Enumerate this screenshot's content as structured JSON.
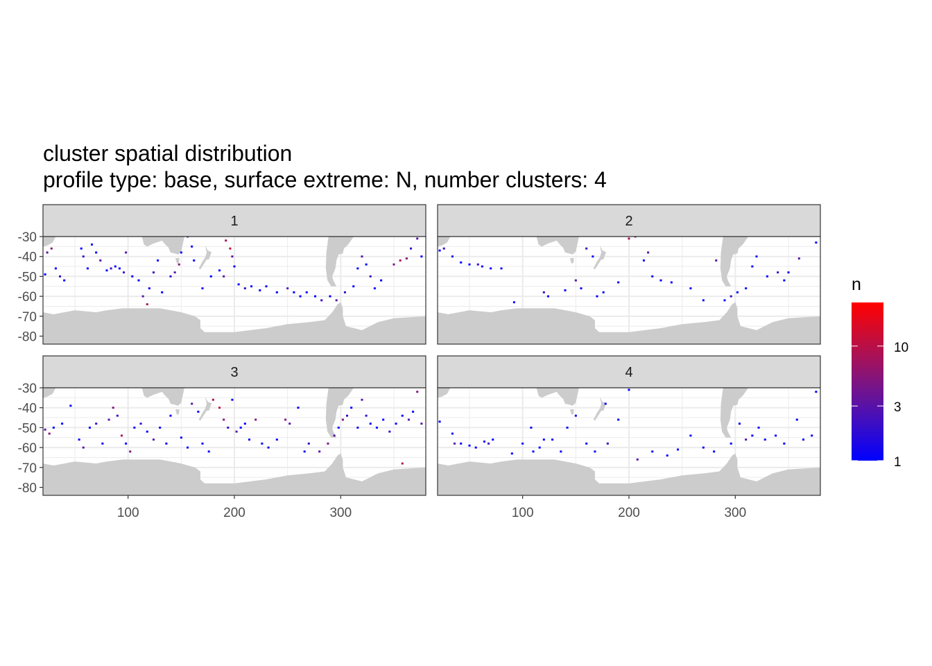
{
  "chart_data": {
    "type": "heatmap",
    "title": "cluster spatial distribution",
    "subtitle": "profile type: base, surface extreme: N, number clusters: 4",
    "xlim": [
      20,
      380
    ],
    "ylim": [
      -84,
      -30
    ],
    "x_ticks": [
      100,
      200,
      300
    ],
    "y_ticks": [
      -30,
      -40,
      -50,
      -60,
      -70,
      -80
    ],
    "grid": true,
    "legend": {
      "title": "n",
      "position": "right",
      "scale": "log",
      "breaks": [
        1,
        3,
        10
      ],
      "range": [
        1,
        24
      ],
      "low_color": "#0000FF",
      "high_color": "#FF0000"
    },
    "land_color": "#CCCCCC",
    "panels": [
      {
        "label": "1",
        "tiles": [
          [
            22,
            -49,
            1
          ],
          [
            24,
            -38,
            3
          ],
          [
            28,
            -36,
            5
          ],
          [
            32,
            -46,
            1
          ],
          [
            36,
            -50,
            2
          ],
          [
            40,
            -52,
            1
          ],
          [
            56,
            -36,
            1
          ],
          [
            58,
            -40,
            2
          ],
          [
            62,
            -46,
            1
          ],
          [
            66,
            -34,
            1
          ],
          [
            70,
            -38,
            1
          ],
          [
            74,
            -42,
            3
          ],
          [
            80,
            -47,
            1
          ],
          [
            84,
            -46,
            2
          ],
          [
            88,
            -45,
            1
          ],
          [
            92,
            -46,
            1
          ],
          [
            96,
            -48,
            2
          ],
          [
            98,
            -38,
            3
          ],
          [
            104,
            -50,
            1
          ],
          [
            110,
            -52,
            1
          ],
          [
            114,
            -60,
            3
          ],
          [
            118,
            -64,
            8
          ],
          [
            120,
            -56,
            1
          ],
          [
            124,
            -48,
            2
          ],
          [
            128,
            -42,
            1
          ],
          [
            132,
            -58,
            1
          ],
          [
            140,
            -50,
            2
          ],
          [
            144,
            -48,
            3
          ],
          [
            148,
            -44,
            5
          ],
          [
            150,
            -38,
            1
          ],
          [
            156,
            -30,
            3
          ],
          [
            160,
            -35,
            1
          ],
          [
            162,
            -42,
            1
          ],
          [
            170,
            -56,
            1
          ],
          [
            178,
            -50,
            1
          ],
          [
            186,
            -47,
            1
          ],
          [
            190,
            -50,
            3
          ],
          [
            192,
            -32,
            8
          ],
          [
            196,
            -36,
            12
          ],
          [
            198,
            -40,
            3
          ],
          [
            200,
            -45,
            1
          ],
          [
            204,
            -54,
            1
          ],
          [
            210,
            -56,
            2
          ],
          [
            216,
            -55,
            1
          ],
          [
            224,
            -57,
            1
          ],
          [
            230,
            -55,
            1
          ],
          [
            240,
            -58,
            1
          ],
          [
            250,
            -56,
            3
          ],
          [
            256,
            -58,
            1
          ],
          [
            262,
            -60,
            1
          ],
          [
            268,
            -58,
            1
          ],
          [
            276,
            -60,
            1
          ],
          [
            282,
            -62,
            2
          ],
          [
            290,
            -60,
            1
          ],
          [
            296,
            -62,
            3
          ],
          [
            304,
            -58,
            2
          ],
          [
            312,
            -55,
            1
          ],
          [
            316,
            -46,
            1
          ],
          [
            320,
            -40,
            3
          ],
          [
            324,
            -44,
            1
          ],
          [
            328,
            -50,
            2
          ],
          [
            332,
            -56,
            1
          ],
          [
            338,
            -52,
            1
          ],
          [
            350,
            -44,
            5
          ],
          [
            356,
            -42,
            8
          ],
          [
            362,
            -41,
            5
          ],
          [
            366,
            -36,
            2
          ],
          [
            372,
            -31,
            3
          ],
          [
            376,
            -40,
            1
          ]
        ]
      },
      {
        "label": "2",
        "tiles": [
          [
            22,
            -37,
            1
          ],
          [
            26,
            -36,
            2
          ],
          [
            34,
            -40,
            1
          ],
          [
            42,
            -43,
            1
          ],
          [
            50,
            -44,
            1
          ],
          [
            58,
            -44,
            2
          ],
          [
            62,
            -45,
            1
          ],
          [
            70,
            -46,
            1
          ],
          [
            80,
            -46,
            1
          ],
          [
            92,
            -63,
            1
          ],
          [
            120,
            -58,
            2
          ],
          [
            124,
            -60,
            1
          ],
          [
            140,
            -57,
            1
          ],
          [
            150,
            -52,
            3
          ],
          [
            155,
            -56,
            1
          ],
          [
            160,
            -36,
            2
          ],
          [
            166,
            -40,
            1
          ],
          [
            170,
            -60,
            1
          ],
          [
            176,
            -58,
            1
          ],
          [
            190,
            -53,
            1
          ],
          [
            200,
            -31,
            8
          ],
          [
            206,
            -30,
            5
          ],
          [
            214,
            -42,
            1
          ],
          [
            218,
            -38,
            3
          ],
          [
            222,
            -50,
            1
          ],
          [
            230,
            -52,
            1
          ],
          [
            240,
            -53,
            1
          ],
          [
            258,
            -56,
            1
          ],
          [
            270,
            -62,
            1
          ],
          [
            282,
            -42,
            3
          ],
          [
            290,
            -62,
            1
          ],
          [
            296,
            -60,
            2
          ],
          [
            302,
            -58,
            1
          ],
          [
            310,
            -56,
            1
          ],
          [
            316,
            -45,
            1
          ],
          [
            320,
            -40,
            1
          ],
          [
            330,
            -50,
            1
          ],
          [
            340,
            -48,
            2
          ],
          [
            346,
            -52,
            1
          ],
          [
            350,
            -48,
            1
          ],
          [
            360,
            -41,
            3
          ],
          [
            376,
            -33,
            1
          ]
        ]
      },
      {
        "label": "3",
        "tiles": [
          [
            22,
            -51,
            3
          ],
          [
            26,
            -53,
            5
          ],
          [
            30,
            -50,
            1
          ],
          [
            38,
            -48,
            1
          ],
          [
            46,
            -39,
            1
          ],
          [
            54,
            -56,
            1
          ],
          [
            58,
            -60,
            3
          ],
          [
            64,
            -50,
            1
          ],
          [
            70,
            -48,
            2
          ],
          [
            76,
            -58,
            1
          ],
          [
            82,
            -46,
            3
          ],
          [
            86,
            -40,
            5
          ],
          [
            90,
            -44,
            2
          ],
          [
            94,
            -54,
            8
          ],
          [
            98,
            -58,
            1
          ],
          [
            102,
            -62,
            5
          ],
          [
            106,
            -50,
            1
          ],
          [
            112,
            -48,
            2
          ],
          [
            118,
            -52,
            1
          ],
          [
            124,
            -56,
            3
          ],
          [
            130,
            -50,
            1
          ],
          [
            136,
            -58,
            1
          ],
          [
            140,
            -44,
            1
          ],
          [
            150,
            -55,
            1
          ],
          [
            156,
            -60,
            1
          ],
          [
            160,
            -38,
            3
          ],
          [
            166,
            -42,
            1
          ],
          [
            170,
            -58,
            1
          ],
          [
            176,
            -62,
            1
          ],
          [
            180,
            -36,
            8
          ],
          [
            186,
            -40,
            12
          ],
          [
            190,
            -46,
            5
          ],
          [
            194,
            -50,
            2
          ],
          [
            198,
            -36,
            1
          ],
          [
            202,
            -52,
            3
          ],
          [
            206,
            -50,
            1
          ],
          [
            210,
            -48,
            1
          ],
          [
            214,
            -56,
            1
          ],
          [
            220,
            -46,
            5
          ],
          [
            226,
            -58,
            1
          ],
          [
            232,
            -60,
            1
          ],
          [
            240,
            -56,
            1
          ],
          [
            248,
            -46,
            5
          ],
          [
            252,
            -48,
            3
          ],
          [
            260,
            -40,
            1
          ],
          [
            266,
            -62,
            1
          ],
          [
            270,
            -58,
            2
          ],
          [
            280,
            -62,
            3
          ],
          [
            288,
            -58,
            5
          ],
          [
            294,
            -54,
            3
          ],
          [
            298,
            -50,
            1
          ],
          [
            302,
            -46,
            5
          ],
          [
            306,
            -44,
            2
          ],
          [
            310,
            -40,
            1
          ],
          [
            316,
            -50,
            1
          ],
          [
            320,
            -36,
            3
          ],
          [
            324,
            -44,
            2
          ],
          [
            328,
            -48,
            1
          ],
          [
            334,
            -50,
            1
          ],
          [
            340,
            -46,
            1
          ],
          [
            346,
            -52,
            2
          ],
          [
            352,
            -48,
            1
          ],
          [
            358,
            -44,
            1
          ],
          [
            364,
            -46,
            3
          ],
          [
            368,
            -42,
            1
          ],
          [
            372,
            -32,
            5
          ],
          [
            376,
            -48,
            3
          ],
          [
            358,
            -68,
            8
          ]
        ]
      },
      {
        "label": "4",
        "tiles": [
          [
            22,
            -47,
            1
          ],
          [
            34,
            -53,
            1
          ],
          [
            36,
            -58,
            3
          ],
          [
            42,
            -58,
            1
          ],
          [
            50,
            -59,
            1
          ],
          [
            56,
            -60,
            1
          ],
          [
            64,
            -57,
            1
          ],
          [
            68,
            -58,
            2
          ],
          [
            72,
            -56,
            1
          ],
          [
            90,
            -63,
            1
          ],
          [
            100,
            -58,
            1
          ],
          [
            108,
            -50,
            1
          ],
          [
            110,
            -62,
            1
          ],
          [
            116,
            -60,
            1
          ],
          [
            120,
            -56,
            1
          ],
          [
            128,
            -56,
            1
          ],
          [
            136,
            -62,
            1
          ],
          [
            142,
            -50,
            1
          ],
          [
            150,
            -44,
            1
          ],
          [
            160,
            -58,
            1
          ],
          [
            168,
            -62,
            1
          ],
          [
            178,
            -38,
            1
          ],
          [
            180,
            -58,
            2
          ],
          [
            190,
            -46,
            1
          ],
          [
            200,
            -31,
            1
          ],
          [
            208,
            -66,
            3
          ],
          [
            222,
            -62,
            1
          ],
          [
            236,
            -64,
            1
          ],
          [
            246,
            -61,
            1
          ],
          [
            258,
            -54,
            1
          ],
          [
            270,
            -60,
            1
          ],
          [
            280,
            -62,
            1
          ],
          [
            296,
            -58,
            1
          ],
          [
            304,
            -48,
            1
          ],
          [
            310,
            -56,
            3
          ],
          [
            316,
            -54,
            1
          ],
          [
            322,
            -50,
            1
          ],
          [
            328,
            -56,
            1
          ],
          [
            338,
            -54,
            1
          ],
          [
            346,
            -58,
            1
          ],
          [
            358,
            -46,
            1
          ],
          [
            364,
            -56,
            1
          ],
          [
            372,
            -54,
            1
          ],
          [
            376,
            -32,
            1
          ]
        ]
      }
    ]
  }
}
